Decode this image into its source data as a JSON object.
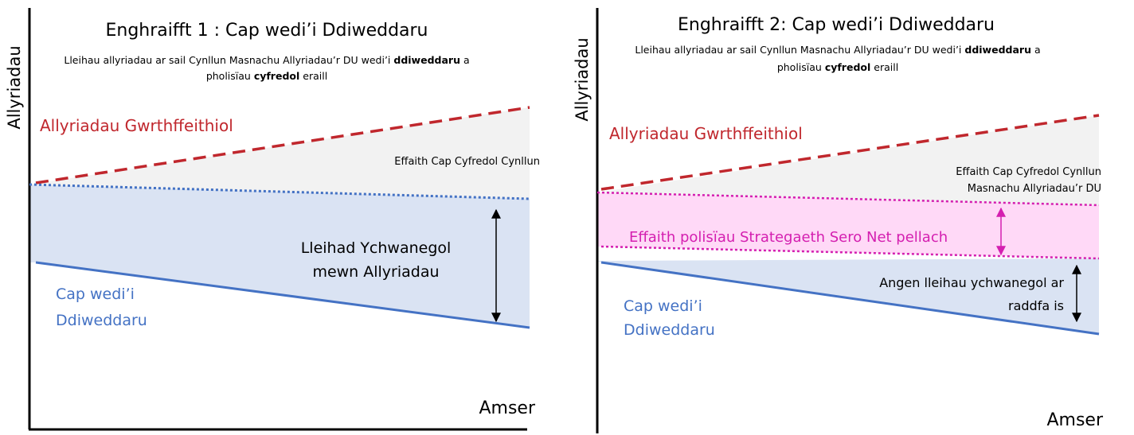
{
  "panels": [
    {
      "title": "Enghraifft 1 : Cap wedi’i Ddiweddaru",
      "subtitle_line1": [
        "Lleihau allyriadau ar sail Cynllun Masnachu Allyriadau’r DU wedi’i ",
        "ddiweddaru",
        " a"
      ],
      "subtitle_line2": [
        "pholisïau ",
        "cyfredol",
        " eraill"
      ],
      "y_axis_label": "Allyriadau",
      "x_axis_label": "Amser",
      "counterfactual_label": "Allyriadau Gwrthffeithiol",
      "current_cap_label": [
        "Effaith Cap Cyfredol Cynllun"
      ],
      "reduction_label": [
        "Lleihad Ychwanegol",
        "mewn Allyriadau"
      ],
      "updated_cap_label": [
        "Cap wedi’i",
        "Ddiweddaru"
      ]
    },
    {
      "title": "Enghraifft 2: Cap wedi’i Ddiweddaru",
      "subtitle_line1": [
        "Lleihau allyriadau ar sail Cynllun Masnachu Allyriadau’r DU wedi’i ",
        "ddiweddaru",
        " a"
      ],
      "subtitle_line2": [
        "pholisïau ",
        "cyfredol",
        " eraill"
      ],
      "y_axis_label": "Allyriadau",
      "x_axis_label": "Amser",
      "counterfactual_label": "Allyriadau Gwrthffeithiol",
      "current_cap_label": [
        "Effaith Cap Cyfredol Cynllun",
        "Masnachu Allyriadau’r DU"
      ],
      "net_zero_label": "Effaith polisïau Strategaeth Sero Net pellach",
      "reduction_label": [
        "Angen lleihau ychwanegol ar",
        "raddfa is"
      ],
      "updated_cap_label": [
        "Cap wedi’i",
        "Ddiweddaru"
      ]
    }
  ]
}
